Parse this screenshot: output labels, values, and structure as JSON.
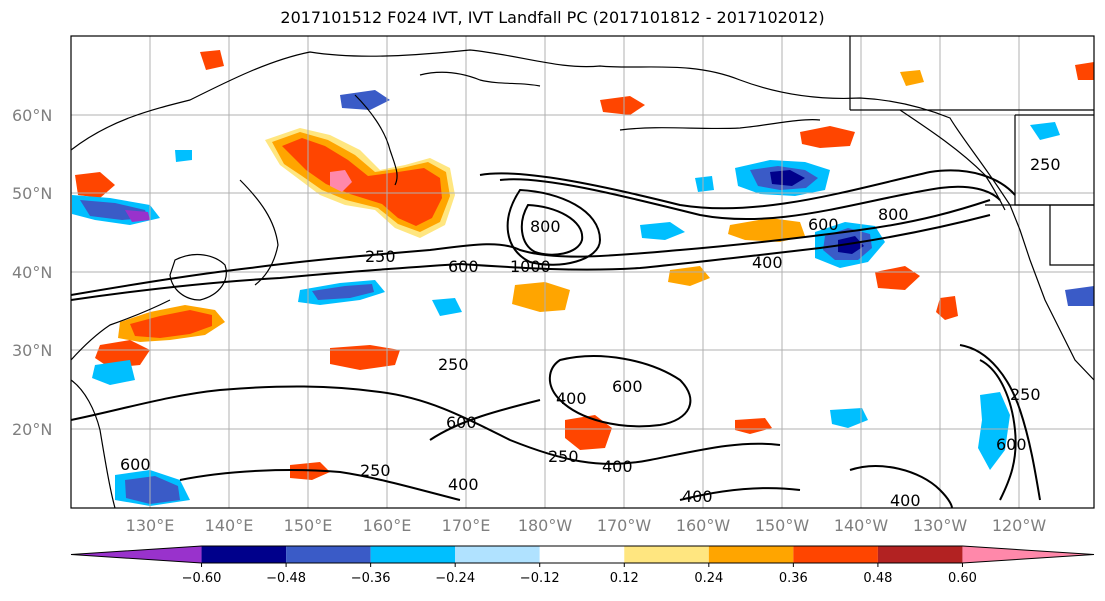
{
  "title": "2017101512 F024 IVT, IVT Landfall PC (2017101812 - 2017102012)",
  "latitude_labels": [
    "60°N",
    "50°N",
    "40°N",
    "30°N",
    "20°N"
  ],
  "longitude_labels": [
    "130°E",
    "140°E",
    "150°E",
    "160°E",
    "170°E",
    "180°W",
    "170°W",
    "160°W",
    "150°W",
    "140°W",
    "130°W",
    "120°W"
  ],
  "colorbar": {
    "colors": [
      "#9932cc",
      "#00008b",
      "#3a5bc7",
      "#00bfff",
      "#b0e2ff",
      "#ffffff",
      "#ffe680",
      "#ffa500",
      "#ff4500",
      "#b22222",
      "#ff88aa"
    ],
    "ticks": [
      "−0.60",
      "−0.48",
      "−0.36",
      "−0.24",
      "−0.12",
      "0.12",
      "0.24",
      "0.36",
      "0.48",
      "0.60"
    ]
  },
  "contour_labels": [
    "250",
    "600",
    "1000",
    "800",
    "600",
    "800",
    "400",
    "250",
    "250",
    "600",
    "400",
    "250",
    "400",
    "400",
    "600",
    "600",
    "250",
    "400",
    "250",
    "600",
    "400"
  ]
}
